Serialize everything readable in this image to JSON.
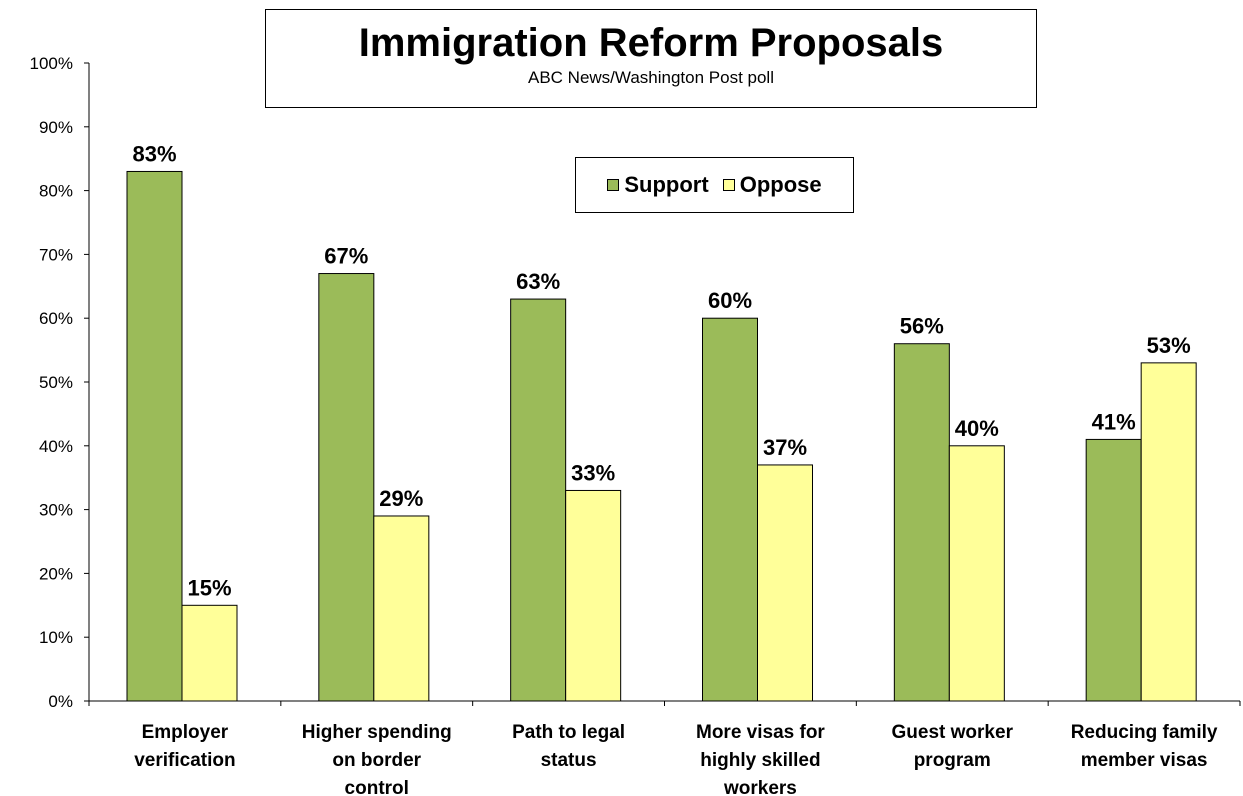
{
  "chart_data": {
    "type": "bar",
    "title": "Immigration Reform Proposals",
    "subtitle": "ABC News/Washington  Post poll",
    "categories": [
      [
        "Employer",
        "verification"
      ],
      [
        "Higher spending",
        "on border",
        "control"
      ],
      [
        "Path to legal",
        "status"
      ],
      [
        "More visas for",
        "highly skilled",
        "workers"
      ],
      [
        "Guest worker",
        "program"
      ],
      [
        "Reducing family",
        "member visas"
      ]
    ],
    "series": [
      {
        "name": "Support",
        "color": "#9BBB59",
        "values": [
          83,
          67,
          63,
          60,
          56,
          41
        ],
        "labels": [
          "83%",
          "67%",
          "63%",
          "60%",
          "56%",
          "41%"
        ]
      },
      {
        "name": "Oppose",
        "color": "#FFFF99",
        "values": [
          15,
          29,
          33,
          37,
          40,
          53
        ],
        "labels": [
          "15%",
          "29%",
          "33%",
          "37%",
          "40%",
          "53%"
        ]
      }
    ],
    "ylim": [
      0,
      100
    ],
    "yticks": [
      "0%",
      "10%",
      "20%",
      "30%",
      "40%",
      "50%",
      "60%",
      "70%",
      "80%",
      "90%",
      "100%"
    ],
    "xlabel": "",
    "ylabel": "",
    "grid": false,
    "legend_position": "top-center"
  }
}
